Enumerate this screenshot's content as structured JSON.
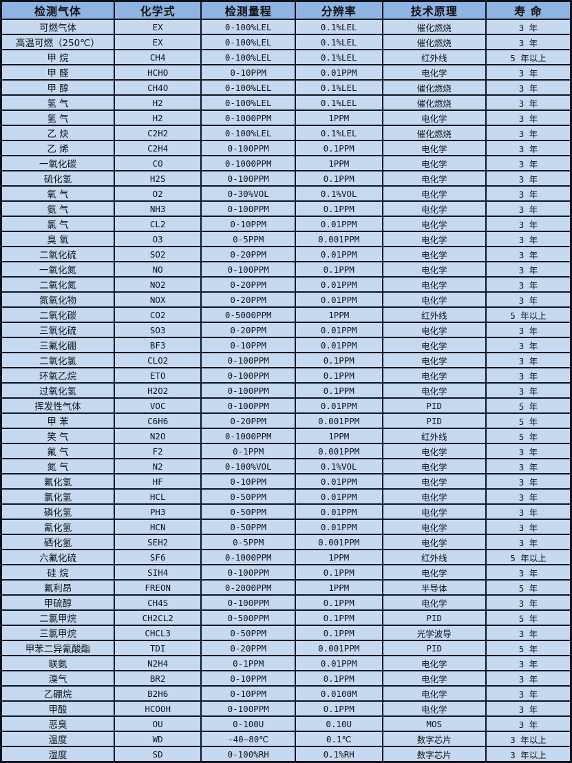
{
  "colors": {
    "header_bg": "#8db4e2",
    "row_bg": "#c5d9f1",
    "border": "#10141e",
    "text": "#111318"
  },
  "table": {
    "columns": [
      "检测气体",
      "化学式",
      "检测量程",
      "分辨率",
      "技术原理",
      "寿 命"
    ],
    "rows": [
      [
        "可燃气体",
        "EX",
        "0-100%LEL",
        "0.1%LEL",
        "催化燃烧",
        "3 年"
      ],
      [
        "高温可燃（250℃）",
        "EX",
        "0-100%LEL",
        "0.1%LEL",
        "催化燃烧",
        "3 年"
      ],
      [
        "甲 烷",
        "CH4",
        "0-100%LEL",
        "0.1%LEL",
        "红外线",
        "5 年以上"
      ],
      [
        "甲 醛",
        "HCHO",
        "0-10PPM",
        "0.01PPM",
        "电化学",
        "3 年"
      ],
      [
        "甲 醇",
        "CH4O",
        "0-100%LEL",
        "0.1%LEL",
        "催化燃烧",
        "3 年"
      ],
      [
        "氢 气",
        "H2",
        "0-100%LEL",
        "0.1%LEL",
        "催化燃烧",
        "3 年"
      ],
      [
        "氢 气",
        "H2",
        "0-1000PPM",
        "1PPM",
        "电化学",
        "3 年"
      ],
      [
        "乙 炔",
        "C2H2",
        "0-100%LEL",
        "0.1%LEL",
        "催化燃烧",
        "3 年"
      ],
      [
        "乙 烯",
        "C2H4",
        "0-100PPM",
        "0.1PPM",
        "电化学",
        "3 年"
      ],
      [
        "一氧化碳",
        "CO",
        "0-1000PPM",
        "1PPM",
        "电化学",
        "3 年"
      ],
      [
        "硫化氢",
        "H2S",
        "0-100PPM",
        "0.1PPM",
        "电化学",
        "3 年"
      ],
      [
        "氧 气",
        "O2",
        "0-30%VOL",
        "0.1%VOL",
        "电化学",
        "3 年"
      ],
      [
        "氨 气",
        "NH3",
        "0-100PPM",
        "0.1PPM",
        "电化学",
        "3 年"
      ],
      [
        "氯 气",
        "CL2",
        "0-10PPM",
        "0.01PPM",
        "电化学",
        "3 年"
      ],
      [
        "臭 氧",
        "O3",
        "0-5PPM",
        "0.001PPM",
        "电化学",
        "3 年"
      ],
      [
        "二氧化硫",
        "SO2",
        "0-20PPM",
        "0.01PPM",
        "电化学",
        "3 年"
      ],
      [
        "一氧化氮",
        "NO",
        "0-100PPM",
        "0.1PPM",
        "电化学",
        "3 年"
      ],
      [
        "二氧化氮",
        "NO2",
        "0-20PPM",
        "0.01PPM",
        "电化学",
        "3 年"
      ],
      [
        "氮氧化物",
        "NOX",
        "0-20PPM",
        "0.01PPM",
        "电化学",
        "3 年"
      ],
      [
        "二氧化碳",
        "CO2",
        "0-5000PPM",
        "1PPM",
        "红外线",
        "5 年以上"
      ],
      [
        "三氧化硫",
        "SO3",
        "0-20PPM",
        "0.01PPM",
        "电化学",
        "3 年"
      ],
      [
        "三氟化硼",
        "BF3",
        "0-10PPM",
        "0.01PPM",
        "电化学",
        "3 年"
      ],
      [
        "二氧化氯",
        "CLO2",
        "0-100PPM",
        "0.1PPM",
        "电化学",
        "3 年"
      ],
      [
        "环氧乙烷",
        "ETO",
        "0-100PPM",
        "0.1PPM",
        "电化学",
        "3 年"
      ],
      [
        "过氧化氢",
        "H2O2",
        "0-100PPM",
        "0.1PPM",
        "电化学",
        "3 年"
      ],
      [
        "挥发性气体",
        "VOC",
        "0-100PPM",
        "0.01PPM",
        "PID",
        "5 年"
      ],
      [
        "甲 苯",
        "C6H6",
        "0-20PPM",
        "0.001PPM",
        "PID",
        "5 年"
      ],
      [
        "笑 气",
        "N2O",
        "0-1000PPM",
        "1PPM",
        "红外线",
        "5 年"
      ],
      [
        "氟 气",
        "F2",
        "0-1PPM",
        "0.001PPM",
        "电化学",
        "3 年"
      ],
      [
        "氮 气",
        "N2",
        "0-100%VOL",
        "0.1%VOL",
        "电化学",
        "3 年"
      ],
      [
        "氟化氢",
        "HF",
        "0-10PPM",
        "0.01PPM",
        "电化学",
        "3 年"
      ],
      [
        "氯化氢",
        "HCL",
        "0-50PPM",
        "0.01PPM",
        "电化学",
        "3 年"
      ],
      [
        "磷化氢",
        "PH3",
        "0-50PPM",
        "0.01PPM",
        "电化学",
        "3 年"
      ],
      [
        "氰化氢",
        "HCN",
        "0-50PPM",
        "0.01PPM",
        "电化学",
        "3 年"
      ],
      [
        "硒化氢",
        "SEH2",
        "0-5PPM",
        "0.001PPM",
        "电化学",
        "3 年"
      ],
      [
        "六氟化硫",
        "SF6",
        "0-1000PPM",
        "1PPM",
        "红外线",
        "5 年以上"
      ],
      [
        "硅 烷",
        "SIH4",
        "0-100PPM",
        "0.1PPM",
        "电化学",
        "3 年"
      ],
      [
        "氟利昂",
        "FREON",
        "0-2000PPM",
        "1PPM",
        "半导体",
        "5 年"
      ],
      [
        "甲硫醇",
        "CH4S",
        "0-100PPM",
        "0.1PPM",
        "电化学",
        "3 年"
      ],
      [
        "二氯甲烷",
        "CH2CL2",
        "0-500PPM",
        "0.1PPM",
        "PID",
        "5 年"
      ],
      [
        "三氯甲烷",
        "CHCL3",
        "0-50PPM",
        "0.1PPM",
        "光学波导",
        "3 年"
      ],
      [
        "甲苯二异氰酸酯",
        "TDI",
        "0-20PPM",
        "0.001PPM",
        "PID",
        "5 年"
      ],
      [
        "联氨",
        "N2H4",
        "0-1PPM",
        "0.01PPM",
        "电化学",
        "3 年"
      ],
      [
        "溴气",
        "BR2",
        "0-10PPM",
        "0.1PPM",
        "电化学",
        "3 年"
      ],
      [
        "乙硼烷",
        "B2H6",
        "0-10PPM",
        "0.0100M",
        "电化学",
        "3 年"
      ],
      [
        "甲酸",
        "HCOOH",
        "0-100PPM",
        "0.1PPM",
        "电化学",
        "3 年"
      ],
      [
        "恶臭",
        "OU",
        "0-100U",
        "0.10U",
        "MOS",
        "3 年"
      ],
      [
        "温度",
        "WD",
        "-40—80℃",
        "0.1℃",
        "数字芯片",
        "3 年以上"
      ],
      [
        "湿度",
        "SD",
        "0-100%RH",
        "0.1%RH",
        "数字芯片",
        "3 年以上"
      ]
    ]
  }
}
